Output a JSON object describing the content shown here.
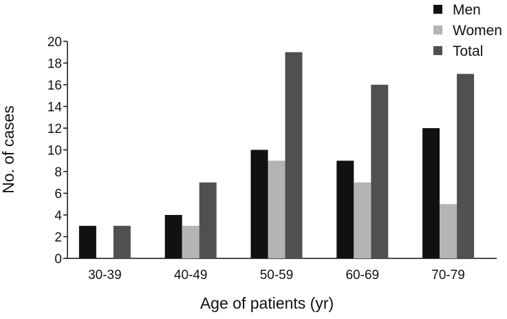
{
  "chart_data": {
    "type": "bar",
    "title": "",
    "xlabel": "Age of patients (yr)",
    "ylabel": "No. of cases",
    "ylim": [
      0,
      20
    ],
    "yticks": [
      0,
      2,
      4,
      6,
      8,
      10,
      12,
      14,
      16,
      18,
      20
    ],
    "categories": [
      "30-39",
      "40-49",
      "50-59",
      "60-69",
      "70-79"
    ],
    "series": [
      {
        "name": "Men",
        "color": "#111111",
        "values": [
          3,
          4,
          10,
          9,
          12
        ]
      },
      {
        "name": "Women",
        "color": "#b4b4b4",
        "values": [
          0,
          3,
          9,
          7,
          5
        ]
      },
      {
        "name": "Total",
        "color": "#505050",
        "values": [
          3,
          7,
          19,
          16,
          17
        ]
      }
    ],
    "legend_position": "top-right",
    "grid": false
  }
}
